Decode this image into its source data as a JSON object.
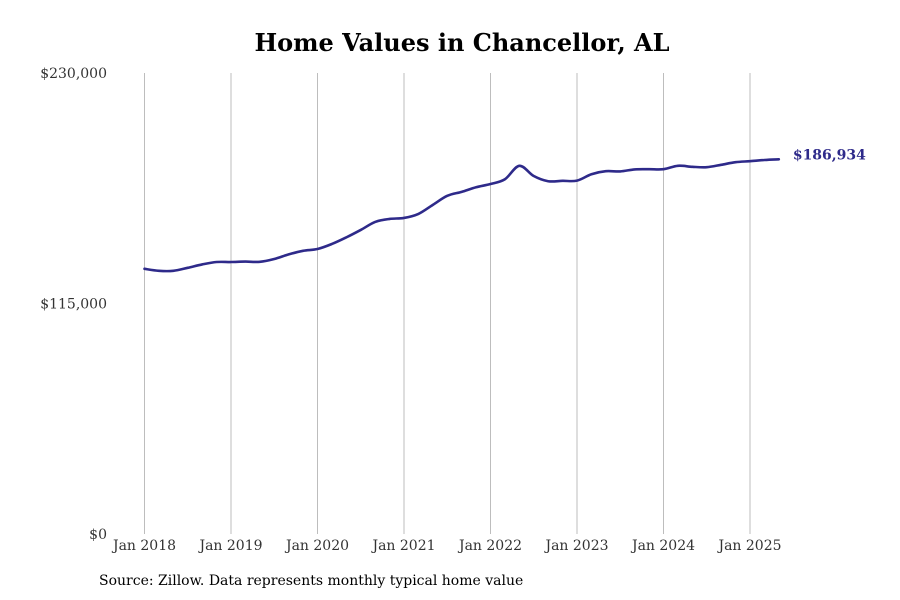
{
  "chart_data": {
    "type": "line",
    "title": "Home Values in Chancellor, AL",
    "xlabel": "",
    "ylabel": "",
    "ylim": [
      0,
      230000
    ],
    "xlim": [
      "2018-01",
      "2025-05"
    ],
    "y_ticks": [
      {
        "value": 0,
        "label": "$0"
      },
      {
        "value": 115000,
        "label": "$115,000"
      },
      {
        "value": 230000,
        "label": "$230,000"
      }
    ],
    "x_ticks": [
      {
        "value": "2018-01",
        "label": "Jan 2018"
      },
      {
        "value": "2019-01",
        "label": "Jan 2019"
      },
      {
        "value": "2020-01",
        "label": "Jan 2020"
      },
      {
        "value": "2021-01",
        "label": "Jan 2021"
      },
      {
        "value": "2022-01",
        "label": "Jan 2022"
      },
      {
        "value": "2023-01",
        "label": "Jan 2023"
      },
      {
        "value": "2024-01",
        "label": "Jan 2024"
      },
      {
        "value": "2025-01",
        "label": "Jan 2025"
      }
    ],
    "grid": {
      "vertical": true,
      "horizontal": false
    },
    "series": [
      {
        "color": "#2e2a8a",
        "x": [
          "2018-01",
          "2018-03",
          "2018-05",
          "2018-07",
          "2018-09",
          "2018-11",
          "2019-01",
          "2019-03",
          "2019-05",
          "2019-07",
          "2019-09",
          "2019-11",
          "2020-01",
          "2020-03",
          "2020-05",
          "2020-07",
          "2020-09",
          "2020-11",
          "2021-01",
          "2021-03",
          "2021-05",
          "2021-07",
          "2021-09",
          "2021-11",
          "2022-01",
          "2022-03",
          "2022-05",
          "2022-07",
          "2022-09",
          "2022-11",
          "2023-01",
          "2023-03",
          "2023-05",
          "2023-07",
          "2023-09",
          "2023-11",
          "2024-01",
          "2024-03",
          "2024-05",
          "2024-07",
          "2024-09",
          "2024-11",
          "2025-01",
          "2025-03",
          "2025-05"
        ],
        "y": [
          132300,
          131300,
          131300,
          132800,
          134500,
          135700,
          135700,
          135900,
          135800,
          137200,
          139500,
          141300,
          142200,
          144700,
          148000,
          151700,
          155700,
          157200,
          157700,
          159700,
          164200,
          168700,
          170700,
          173000,
          174600,
          177000,
          183700,
          178600,
          176000,
          176200,
          176300,
          179500,
          181000,
          180900,
          181900,
          182000,
          182000,
          183700,
          183200,
          183000,
          184200,
          185500,
          186000,
          186600,
          186934
        ]
      }
    ],
    "annotations": [
      {
        "text": "$186,934",
        "anchor": "last-point",
        "color": "#2e2a8a"
      }
    ]
  },
  "source_note": "Source: Zillow. Data represents monthly typical home value"
}
